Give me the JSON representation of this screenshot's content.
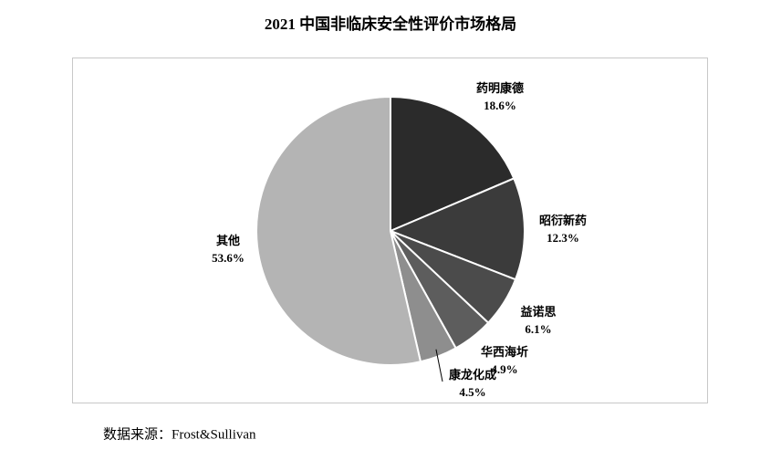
{
  "chart_data": {
    "type": "pie",
    "title": "2021 中国非临床安全性评价市场格局",
    "categories": [
      "药明康德",
      "昭衍新药",
      "益诺思",
      "华西海圻",
      "康龙化成",
      "其他"
    ],
    "values": [
      18.6,
      12.3,
      6.1,
      4.9,
      4.5,
      53.6
    ],
    "value_labels": [
      "18.6%",
      "12.3%",
      "6.1%",
      "4.9%",
      "4.5%",
      "53.6%"
    ],
    "colors": [
      "#2b2b2b",
      "#3b3b3b",
      "#4b4b4b",
      "#5d5d5d",
      "#8e8e8e",
      "#b4b4b4"
    ],
    "source": "数据来源：Frost&Sullivan"
  }
}
